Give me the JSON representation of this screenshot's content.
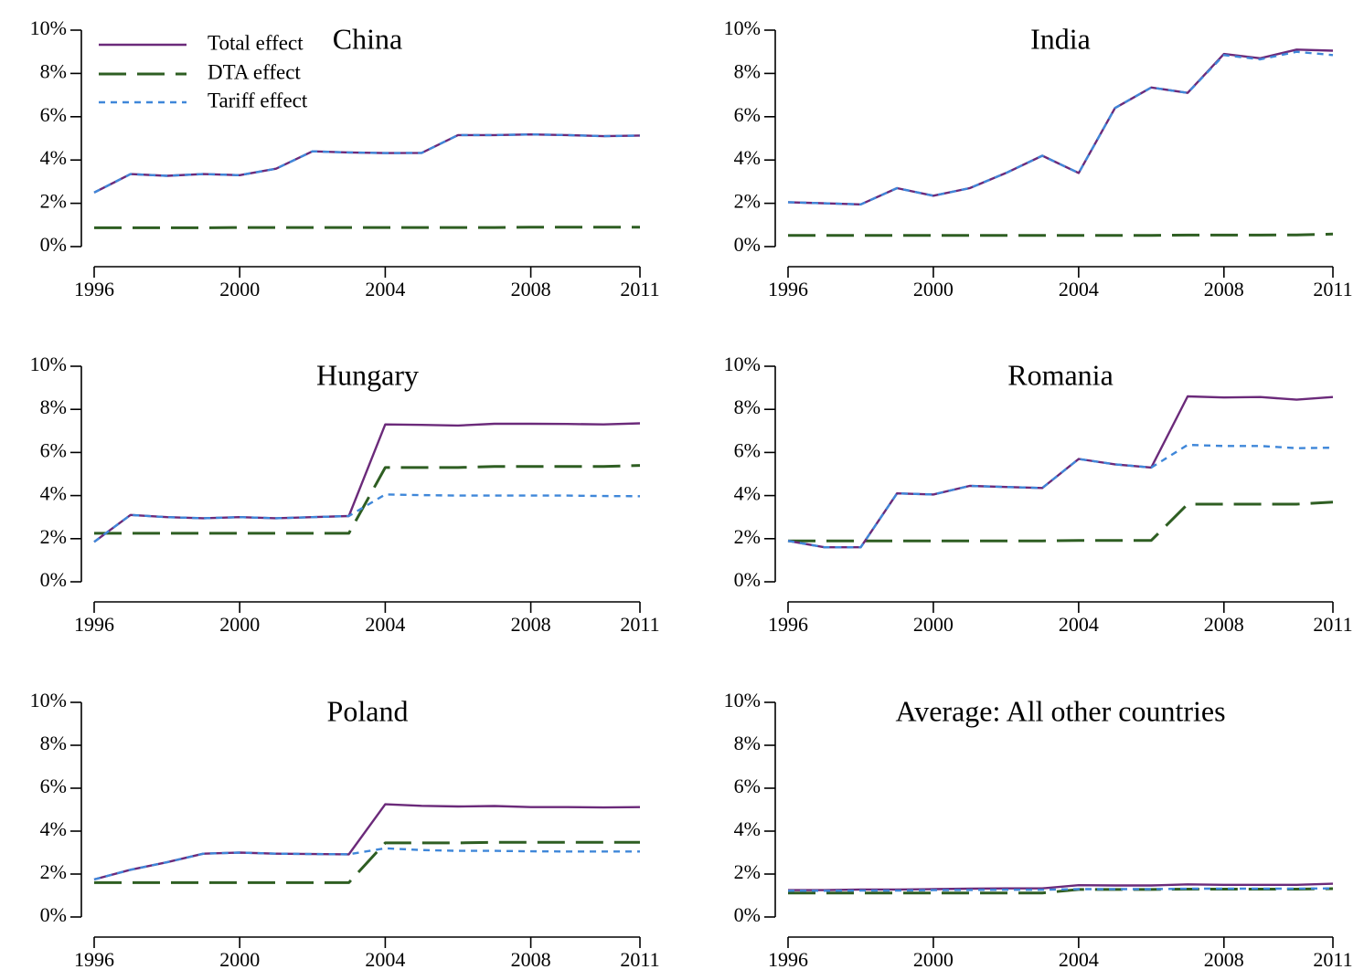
{
  "colors": {
    "total": "#6b2a7a",
    "dta": "#2e5e22",
    "tariff": "#3f87d9"
  },
  "legend": [
    {
      "key": "total",
      "label": "Total effect",
      "style": "solid"
    },
    {
      "key": "dta",
      "label": "DTA effect",
      "style": "long-dash"
    },
    {
      "key": "tariff",
      "label": "Tariff effect",
      "style": "short-dash"
    }
  ],
  "chart_data": [
    {
      "type": "line",
      "title": "China",
      "x": [
        1996,
        1997,
        1998,
        1999,
        2000,
        2001,
        2002,
        2003,
        2004,
        2005,
        2006,
        2007,
        2008,
        2009,
        2010,
        2011
      ],
      "xticks": [
        "1996",
        "2000",
        "2004",
        "2008",
        "2011"
      ],
      "yticks": [
        "0%",
        "2%",
        "4%",
        "6%",
        "8%",
        "10%"
      ],
      "ylim": [
        0,
        10
      ],
      "series": [
        {
          "name": "Total effect",
          "values": [
            2.5,
            3.35,
            3.27,
            3.35,
            3.3,
            3.6,
            4.4,
            4.35,
            4.32,
            4.33,
            5.15,
            5.15,
            5.18,
            5.15,
            5.1,
            5.13
          ]
        },
        {
          "name": "DTA effect",
          "values": [
            0.87,
            0.87,
            0.87,
            0.87,
            0.88,
            0.88,
            0.88,
            0.88,
            0.88,
            0.88,
            0.88,
            0.88,
            0.9,
            0.9,
            0.9,
            0.9
          ]
        },
        {
          "name": "Tariff effect",
          "values": [
            2.5,
            3.35,
            3.27,
            3.35,
            3.3,
            3.6,
            4.4,
            4.35,
            4.32,
            4.33,
            5.15,
            5.15,
            5.18,
            5.15,
            5.1,
            5.13
          ]
        }
      ]
    },
    {
      "type": "line",
      "title": "India",
      "x": [
        1996,
        1997,
        1998,
        1999,
        2000,
        2001,
        2002,
        2003,
        2004,
        2005,
        2006,
        2007,
        2008,
        2009,
        2010,
        2011
      ],
      "xticks": [
        "1996",
        "2000",
        "2004",
        "2008",
        "2011"
      ],
      "yticks": [
        "0%",
        "2%",
        "4%",
        "6%",
        "8%",
        "10%"
      ],
      "ylim": [
        0,
        10
      ],
      "series": [
        {
          "name": "Total effect",
          "values": [
            2.05,
            2.0,
            1.95,
            2.7,
            2.35,
            2.7,
            3.4,
            4.2,
            3.4,
            6.4,
            7.35,
            7.1,
            8.9,
            8.7,
            9.1,
            9.05
          ]
        },
        {
          "name": "DTA effect",
          "values": [
            0.52,
            0.52,
            0.52,
            0.52,
            0.52,
            0.52,
            0.52,
            0.52,
            0.52,
            0.52,
            0.52,
            0.53,
            0.53,
            0.53,
            0.54,
            0.58
          ]
        },
        {
          "name": "Tariff effect",
          "values": [
            2.05,
            2.0,
            1.95,
            2.7,
            2.35,
            2.7,
            3.4,
            4.2,
            3.4,
            6.4,
            7.35,
            7.1,
            8.85,
            8.65,
            9.0,
            8.85
          ]
        }
      ]
    },
    {
      "type": "line",
      "title": "Hungary",
      "x": [
        1996,
        1997,
        1998,
        1999,
        2000,
        2001,
        2002,
        2003,
        2004,
        2005,
        2006,
        2007,
        2008,
        2009,
        2010,
        2011
      ],
      "xticks": [
        "1996",
        "2000",
        "2004",
        "2008",
        "2011"
      ],
      "yticks": [
        "0%",
        "2%",
        "4%",
        "6%",
        "8%",
        "10%"
      ],
      "ylim": [
        0,
        10
      ],
      "series": [
        {
          "name": "Total effect",
          "values": [
            1.85,
            3.1,
            3.0,
            2.95,
            3.0,
            2.95,
            3.0,
            3.05,
            7.3,
            7.28,
            7.25,
            7.33,
            7.33,
            7.32,
            7.3,
            7.35
          ]
        },
        {
          "name": "DTA effect",
          "values": [
            2.25,
            2.25,
            2.25,
            2.25,
            2.25,
            2.25,
            2.25,
            2.25,
            5.3,
            5.3,
            5.3,
            5.35,
            5.35,
            5.35,
            5.35,
            5.4
          ]
        },
        {
          "name": "Tariff effect",
          "values": [
            1.85,
            3.1,
            3.0,
            2.95,
            3.0,
            2.95,
            3.0,
            3.05,
            4.05,
            4.02,
            4.0,
            4.0,
            4.0,
            4.0,
            3.98,
            3.97
          ]
        }
      ]
    },
    {
      "type": "line",
      "title": "Romania",
      "x": [
        1996,
        1997,
        1998,
        1999,
        2000,
        2001,
        2002,
        2003,
        2004,
        2005,
        2006,
        2007,
        2008,
        2009,
        2010,
        2011
      ],
      "xticks": [
        "1996",
        "2000",
        "2004",
        "2008",
        "2011"
      ],
      "yticks": [
        "0%",
        "2%",
        "4%",
        "6%",
        "8%",
        "10%"
      ],
      "ylim": [
        0,
        10
      ],
      "series": [
        {
          "name": "Total effect",
          "values": [
            1.9,
            1.6,
            1.6,
            4.1,
            4.05,
            4.45,
            4.4,
            4.35,
            5.7,
            5.45,
            5.3,
            8.6,
            8.55,
            8.57,
            8.45,
            8.57
          ]
        },
        {
          "name": "DTA effect",
          "values": [
            1.9,
            1.9,
            1.9,
            1.9,
            1.9,
            1.9,
            1.9,
            1.9,
            1.92,
            1.92,
            1.92,
            3.6,
            3.6,
            3.6,
            3.6,
            3.7
          ]
        },
        {
          "name": "Tariff effect",
          "values": [
            1.9,
            1.6,
            1.6,
            4.1,
            4.05,
            4.45,
            4.4,
            4.35,
            5.7,
            5.45,
            5.3,
            6.35,
            6.3,
            6.3,
            6.2,
            6.22
          ]
        }
      ]
    },
    {
      "type": "line",
      "title": "Poland",
      "x": [
        1996,
        1997,
        1998,
        1999,
        2000,
        2001,
        2002,
        2003,
        2004,
        2005,
        2006,
        2007,
        2008,
        2009,
        2010,
        2011
      ],
      "xticks": [
        "1996",
        "2000",
        "2004",
        "2008",
        "2011"
      ],
      "yticks": [
        "0%",
        "2%",
        "4%",
        "6%",
        "8%",
        "10%"
      ],
      "ylim": [
        0,
        10
      ],
      "series": [
        {
          "name": "Total effect",
          "values": [
            1.75,
            2.2,
            2.55,
            2.95,
            3.0,
            2.95,
            2.93,
            2.92,
            5.25,
            5.18,
            5.15,
            5.17,
            5.12,
            5.12,
            5.1,
            5.12
          ]
        },
        {
          "name": "DTA effect",
          "values": [
            1.6,
            1.6,
            1.6,
            1.6,
            1.6,
            1.6,
            1.6,
            1.6,
            3.45,
            3.45,
            3.45,
            3.48,
            3.48,
            3.48,
            3.48,
            3.48
          ]
        },
        {
          "name": "Tariff effect",
          "values": [
            1.75,
            2.2,
            2.55,
            2.95,
            3.0,
            2.95,
            2.93,
            2.92,
            3.2,
            3.12,
            3.08,
            3.08,
            3.06,
            3.05,
            3.05,
            3.05
          ]
        }
      ]
    },
    {
      "type": "line",
      "title": "Average: All other countries",
      "x": [
        1996,
        1997,
        1998,
        1999,
        2000,
        2001,
        2002,
        2003,
        2004,
        2005,
        2006,
        2007,
        2008,
        2009,
        2010,
        2011
      ],
      "xticks": [
        "1996",
        "2000",
        "2004",
        "2008",
        "2011"
      ],
      "yticks": [
        "0%",
        "2%",
        "4%",
        "6%",
        "8%",
        "10%"
      ],
      "ylim": [
        0,
        10
      ],
      "series": [
        {
          "name": "Total effect",
          "values": [
            1.25,
            1.25,
            1.28,
            1.28,
            1.3,
            1.32,
            1.33,
            1.33,
            1.48,
            1.47,
            1.47,
            1.52,
            1.5,
            1.5,
            1.5,
            1.55
          ]
        },
        {
          "name": "DTA effect",
          "values": [
            1.12,
            1.12,
            1.12,
            1.12,
            1.12,
            1.12,
            1.12,
            1.12,
            1.28,
            1.28,
            1.28,
            1.3,
            1.3,
            1.3,
            1.3,
            1.32
          ]
        },
        {
          "name": "Tariff effect",
          "values": [
            1.22,
            1.22,
            1.23,
            1.23,
            1.25,
            1.26,
            1.27,
            1.27,
            1.3,
            1.3,
            1.3,
            1.32,
            1.32,
            1.32,
            1.32,
            1.33
          ]
        }
      ]
    }
  ]
}
